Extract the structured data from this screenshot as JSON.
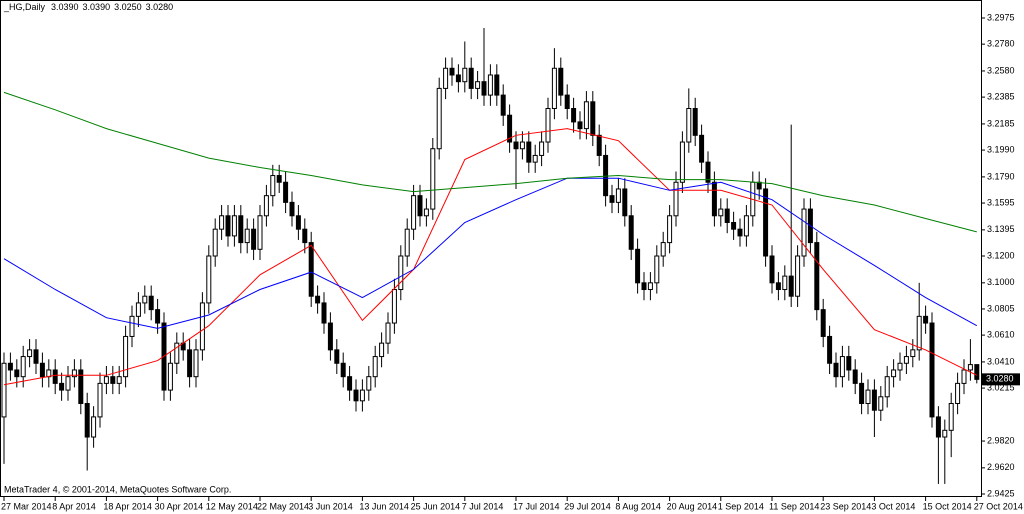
{
  "chart_data": {
    "type": "candlestick",
    "title": "_HG,Daily",
    "header_values": [
      "3.0390",
      "3.0390",
      "3.0250",
      "3.0280"
    ],
    "credit": "MetaTrader 4, © 2001-2014, MetaQuotes Software Corp.",
    "current_price_label": "3.0280",
    "ylim": [
      2.9425,
      3.2975
    ],
    "yticks": [
      3.2975,
      {
        "value": 3.278,
        "label": "3.2780"
      },
      {
        "value": 3.258,
        "label": "3.2580"
      },
      3.2385,
      3.2185,
      {
        "value": 3.199,
        "label": "3.1990"
      },
      {
        "value": 3.179,
        "label": "3.1790"
      },
      3.1595,
      3.1395,
      {
        "value": 3.12,
        "label": "3.1200"
      },
      {
        "value": 3.1,
        "label": "3.1000"
      },
      3.0805,
      {
        "value": 3.061,
        "label": "3.0610"
      },
      {
        "value": 3.041,
        "label": "3.0410"
      },
      3.0215,
      {
        "value": 2.982,
        "label": "2.9820"
      },
      {
        "value": 2.962,
        "label": "2.9620"
      },
      2.9425
    ],
    "bull_color": "#ffffff",
    "bear_color": "#000000",
    "categories": [
      "27 Mar 2014",
      null,
      null,
      null,
      null,
      null,
      null,
      null,
      "8 Apr 2014",
      null,
      null,
      null,
      null,
      null,
      null,
      null,
      "18 Apr 2014",
      null,
      null,
      null,
      null,
      null,
      null,
      null,
      "30 Apr 2014",
      null,
      null,
      null,
      null,
      null,
      null,
      null,
      "12 May 2014",
      null,
      null,
      null,
      null,
      null,
      null,
      null,
      "22 May 2014",
      null,
      null,
      null,
      null,
      null,
      null,
      null,
      "3 Jun 2014",
      null,
      null,
      null,
      null,
      null,
      null,
      null,
      "13 Jun 2014",
      null,
      null,
      null,
      null,
      null,
      null,
      null,
      "25 Jun 2014",
      null,
      null,
      null,
      null,
      null,
      null,
      null,
      "7 Jul 2014",
      null,
      null,
      null,
      null,
      null,
      null,
      null,
      "17 Jul 2014",
      null,
      null,
      null,
      null,
      null,
      null,
      null,
      "29 Jul 2014",
      null,
      null,
      null,
      null,
      null,
      null,
      null,
      "8 Aug 2014",
      null,
      null,
      null,
      null,
      null,
      null,
      null,
      "20 Aug 2014",
      null,
      null,
      null,
      null,
      null,
      null,
      null,
      "1 Sep 2014",
      null,
      null,
      null,
      null,
      null,
      null,
      null,
      "11 Sep 2014",
      null,
      null,
      null,
      null,
      null,
      null,
      null,
      "23 Sep 2014",
      null,
      null,
      null,
      null,
      null,
      null,
      null,
      "3 Oct 2014",
      null,
      null,
      null,
      null,
      null,
      null,
      null,
      "15 Oct 2014",
      null,
      null,
      null,
      null,
      null,
      null,
      null,
      "27 Oct 2014"
    ],
    "open": [
      3.0,
      3.04,
      3.035,
      3.03,
      3.045,
      3.05,
      3.04,
      3.03,
      3.035,
      3.025,
      3.02,
      3.03,
      3.035,
      3.01,
      2.985,
      3.0,
      3.025,
      3.03,
      3.025,
      3.03,
      3.06,
      3.075,
      3.085,
      3.09,
      3.08,
      3.07,
      3.02,
      3.04,
      3.055,
      3.05,
      3.03,
      3.05,
      3.085,
      3.12,
      3.14,
      3.15,
      3.135,
      3.15,
      3.13,
      3.14,
      3.125,
      3.15,
      3.165,
      3.18,
      3.175,
      3.16,
      3.15,
      3.14,
      3.13,
      3.09,
      3.085,
      3.07,
      3.05,
      3.04,
      3.03,
      3.02,
      3.012,
      3.02,
      3.03,
      3.045,
      3.055,
      3.07,
      3.095,
      3.12,
      3.14,
      3.165,
      3.15,
      3.155,
      3.2,
      3.245,
      3.26,
      3.255,
      3.25,
      3.26,
      3.245,
      3.25,
      3.24,
      3.255,
      3.24,
      3.225,
      3.205,
      3.2,
      3.205,
      3.19,
      3.195,
      3.205,
      3.23,
      3.26,
      3.24,
      3.23,
      3.22,
      3.215,
      3.235,
      3.21,
      3.195,
      3.165,
      3.16,
      3.17,
      3.15,
      3.125,
      3.1,
      3.095,
      3.1,
      3.12,
      3.13,
      3.15,
      3.175,
      3.205,
      3.23,
      3.21,
      3.19,
      3.175,
      3.15,
      3.155,
      3.145,
      3.14,
      3.135,
      3.15,
      3.175,
      3.17,
      3.12,
      3.1,
      3.095,
      3.105,
      3.09,
      3.12,
      3.155,
      3.13,
      3.08,
      3.06,
      3.04,
      3.03,
      3.045,
      3.035,
      3.025,
      3.01,
      3.02,
      3.005,
      3.015,
      3.03,
      3.035,
      3.04,
      3.045,
      3.05,
      3.075,
      3.07,
      3.0,
      2.985,
      2.99,
      3.01,
      3.025,
      3.035,
      3.039
    ],
    "high": [
      3.048,
      3.048,
      3.043,
      3.053,
      3.058,
      3.058,
      3.048,
      3.043,
      3.043,
      3.033,
      3.038,
      3.043,
      3.043,
      3.018,
      3.008,
      3.033,
      3.038,
      3.038,
      3.038,
      3.068,
      3.083,
      3.093,
      3.098,
      3.098,
      3.088,
      3.078,
      3.048,
      3.063,
      3.063,
      3.058,
      3.058,
      3.093,
      3.128,
      3.148,
      3.158,
      3.158,
      3.158,
      3.158,
      3.148,
      3.148,
      3.158,
      3.173,
      3.188,
      3.188,
      3.183,
      3.168,
      3.158,
      3.148,
      3.138,
      3.098,
      3.093,
      3.078,
      3.058,
      3.048,
      3.038,
      3.028,
      3.028,
      3.038,
      3.053,
      3.063,
      3.078,
      3.103,
      3.128,
      3.148,
      3.173,
      3.173,
      3.163,
      3.208,
      3.253,
      3.268,
      3.268,
      3.263,
      3.28,
      3.268,
      3.258,
      3.29,
      3.263,
      3.263,
      3.248,
      3.233,
      3.213,
      3.213,
      3.213,
      3.203,
      3.213,
      3.238,
      3.275,
      3.268,
      3.248,
      3.238,
      3.228,
      3.243,
      3.243,
      3.218,
      3.203,
      3.173,
      3.178,
      3.178,
      3.158,
      3.133,
      3.108,
      3.108,
      3.128,
      3.138,
      3.158,
      3.183,
      3.213,
      3.245,
      3.238,
      3.218,
      3.198,
      3.183,
      3.163,
      3.163,
      3.153,
      3.148,
      3.158,
      3.183,
      3.183,
      3.178,
      3.128,
      3.108,
      3.113,
      3.218,
      3.128,
      3.163,
      3.163,
      3.138,
      3.088,
      3.068,
      3.048,
      3.053,
      3.053,
      3.043,
      3.033,
      3.028,
      3.028,
      3.023,
      3.038,
      3.043,
      3.048,
      3.053,
      3.058,
      3.1,
      3.083,
      3.078,
      3.008,
      2.998,
      3.018,
      3.033,
      3.043,
      3.058,
      3.039
    ],
    "low": [
      2.965,
      3.027,
      3.022,
      3.022,
      3.037,
      3.032,
      3.022,
      3.022,
      3.017,
      3.012,
      3.012,
      3.022,
      3.002,
      2.96,
      2.977,
      2.992,
      3.017,
      3.017,
      3.017,
      3.022,
      3.052,
      3.067,
      3.077,
      3.072,
      3.062,
      3.012,
      3.012,
      3.032,
      3.042,
      3.022,
      3.022,
      3.042,
      3.077,
      3.112,
      3.132,
      3.127,
      3.127,
      3.122,
      3.122,
      3.117,
      3.117,
      3.142,
      3.157,
      3.167,
      3.152,
      3.142,
      3.132,
      3.122,
      3.082,
      3.077,
      3.062,
      3.042,
      3.032,
      3.022,
      3.012,
      3.004,
      3.004,
      3.012,
      3.022,
      3.037,
      3.047,
      3.062,
      3.087,
      3.112,
      3.132,
      3.142,
      3.142,
      3.147,
      3.192,
      3.237,
      3.247,
      3.242,
      3.242,
      3.237,
      3.237,
      3.232,
      3.232,
      3.232,
      3.217,
      3.197,
      3.17,
      3.192,
      3.182,
      3.182,
      3.187,
      3.197,
      3.222,
      3.232,
      3.222,
      3.212,
      3.207,
      3.207,
      3.202,
      3.187,
      3.157,
      3.152,
      3.152,
      3.142,
      3.117,
      3.092,
      3.087,
      3.087,
      3.092,
      3.112,
      3.122,
      3.142,
      3.167,
      3.197,
      3.202,
      3.182,
      3.167,
      3.142,
      3.142,
      3.137,
      3.132,
      3.127,
      3.127,
      3.142,
      3.162,
      3.112,
      3.092,
      3.087,
      3.087,
      3.082,
      3.082,
      3.112,
      3.122,
      3.072,
      3.052,
      3.032,
      3.022,
      3.022,
      3.027,
      3.017,
      3.002,
      3.002,
      2.985,
      2.997,
      3.007,
      3.022,
      3.027,
      3.032,
      3.037,
      3.042,
      3.062,
      2.992,
      2.95,
      2.95,
      2.97,
      3.002,
      3.017,
      3.027,
      3.025
    ],
    "close": [
      3.04,
      3.035,
      3.03,
      3.045,
      3.05,
      3.04,
      3.03,
      3.035,
      3.025,
      3.02,
      3.03,
      3.035,
      3.01,
      2.985,
      3.0,
      3.025,
      3.03,
      3.025,
      3.03,
      3.06,
      3.075,
      3.085,
      3.09,
      3.08,
      3.07,
      3.02,
      3.04,
      3.055,
      3.05,
      3.03,
      3.05,
      3.085,
      3.12,
      3.14,
      3.15,
      3.135,
      3.15,
      3.13,
      3.14,
      3.125,
      3.15,
      3.165,
      3.18,
      3.175,
      3.16,
      3.15,
      3.14,
      3.13,
      3.09,
      3.085,
      3.07,
      3.05,
      3.04,
      3.03,
      3.02,
      3.012,
      3.02,
      3.03,
      3.045,
      3.055,
      3.07,
      3.095,
      3.12,
      3.14,
      3.165,
      3.15,
      3.155,
      3.2,
      3.245,
      3.26,
      3.255,
      3.25,
      3.26,
      3.245,
      3.25,
      3.24,
      3.255,
      3.24,
      3.225,
      3.205,
      3.2,
      3.205,
      3.19,
      3.195,
      3.205,
      3.23,
      3.26,
      3.24,
      3.23,
      3.22,
      3.215,
      3.235,
      3.21,
      3.195,
      3.165,
      3.16,
      3.17,
      3.15,
      3.125,
      3.1,
      3.095,
      3.1,
      3.12,
      3.13,
      3.15,
      3.175,
      3.205,
      3.23,
      3.21,
      3.19,
      3.175,
      3.15,
      3.155,
      3.145,
      3.14,
      3.135,
      3.15,
      3.175,
      3.17,
      3.12,
      3.1,
      3.095,
      3.105,
      3.09,
      3.12,
      3.155,
      3.13,
      3.08,
      3.06,
      3.04,
      3.03,
      3.045,
      3.035,
      3.025,
      3.01,
      3.02,
      3.005,
      3.015,
      3.03,
      3.035,
      3.04,
      3.045,
      3.05,
      3.075,
      3.07,
      3.0,
      2.985,
      2.99,
      3.01,
      3.025,
      3.035,
      3.039,
      3.028
    ],
    "moving_averages": [
      {
        "color": "#ff0000",
        "x": [
          "27 Mar 2014",
          "8 Apr 2014",
          "18 Apr 2014",
          "30 Apr 2014",
          "12 May 2014",
          "22 May 2014",
          "3 Jun 2014",
          "13 Jun 2014",
          "25 Jun 2014",
          "7 Jul 2014",
          "17 Jul 2014",
          "29 Jul 2014",
          "8 Aug 2014",
          "20 Aug 2014",
          "1 Sep 2014",
          "11 Sep 2014",
          "23 Sep 2014",
          "3 Oct 2014",
          "15 Oct 2014",
          "27 Oct 2014"
        ],
        "values": [
          3.024,
          3.031,
          3.031,
          3.042,
          3.068,
          3.106,
          3.128,
          3.072,
          3.11,
          3.192,
          3.21,
          3.215,
          3.206,
          3.169,
          3.169,
          3.158,
          3.11,
          3.065,
          3.05,
          3.031
        ]
      },
      {
        "color": "#0000ff",
        "x": [
          "27 Mar 2014",
          "8 Apr 2014",
          "18 Apr 2014",
          "30 Apr 2014",
          "12 May 2014",
          "22 May 2014",
          "3 Jun 2014",
          "13 Jun 2014",
          "25 Jun 2014",
          "7 Jul 2014",
          "17 Jul 2014",
          "29 Jul 2014",
          "8 Aug 2014",
          "20 Aug 2014",
          "1 Sep 2014",
          "11 Sep 2014",
          "23 Sep 2014",
          "3 Oct 2014",
          "15 Oct 2014",
          "27 Oct 2014"
        ],
        "values": [
          3.118,
          3.095,
          3.074,
          3.066,
          3.076,
          3.095,
          3.108,
          3.089,
          3.11,
          3.145,
          3.162,
          3.178,
          3.178,
          3.169,
          3.175,
          3.162,
          3.136,
          3.113,
          3.089,
          3.068
        ]
      },
      {
        "color": "#008000",
        "x": [
          "27 Mar 2014",
          "8 Apr 2014",
          "18 Apr 2014",
          "30 Apr 2014",
          "12 May 2014",
          "22 May 2014",
          "3 Jun 2014",
          "13 Jun 2014",
          "25 Jun 2014",
          "7 Jul 2014",
          "17 Jul 2014",
          "29 Jul 2014",
          "8 Aug 2014",
          "20 Aug 2014",
          "1 Sep 2014",
          "11 Sep 2014",
          "23 Sep 2014",
          "3 Oct 2014",
          "15 Oct 2014",
          "27 Oct 2014"
        ],
        "values": [
          3.242,
          3.229,
          3.215,
          3.204,
          3.193,
          3.186,
          3.18,
          3.173,
          3.168,
          3.171,
          3.174,
          3.178,
          3.18,
          3.177,
          3.177,
          3.174,
          3.165,
          3.158,
          3.148,
          3.138
        ]
      }
    ]
  }
}
